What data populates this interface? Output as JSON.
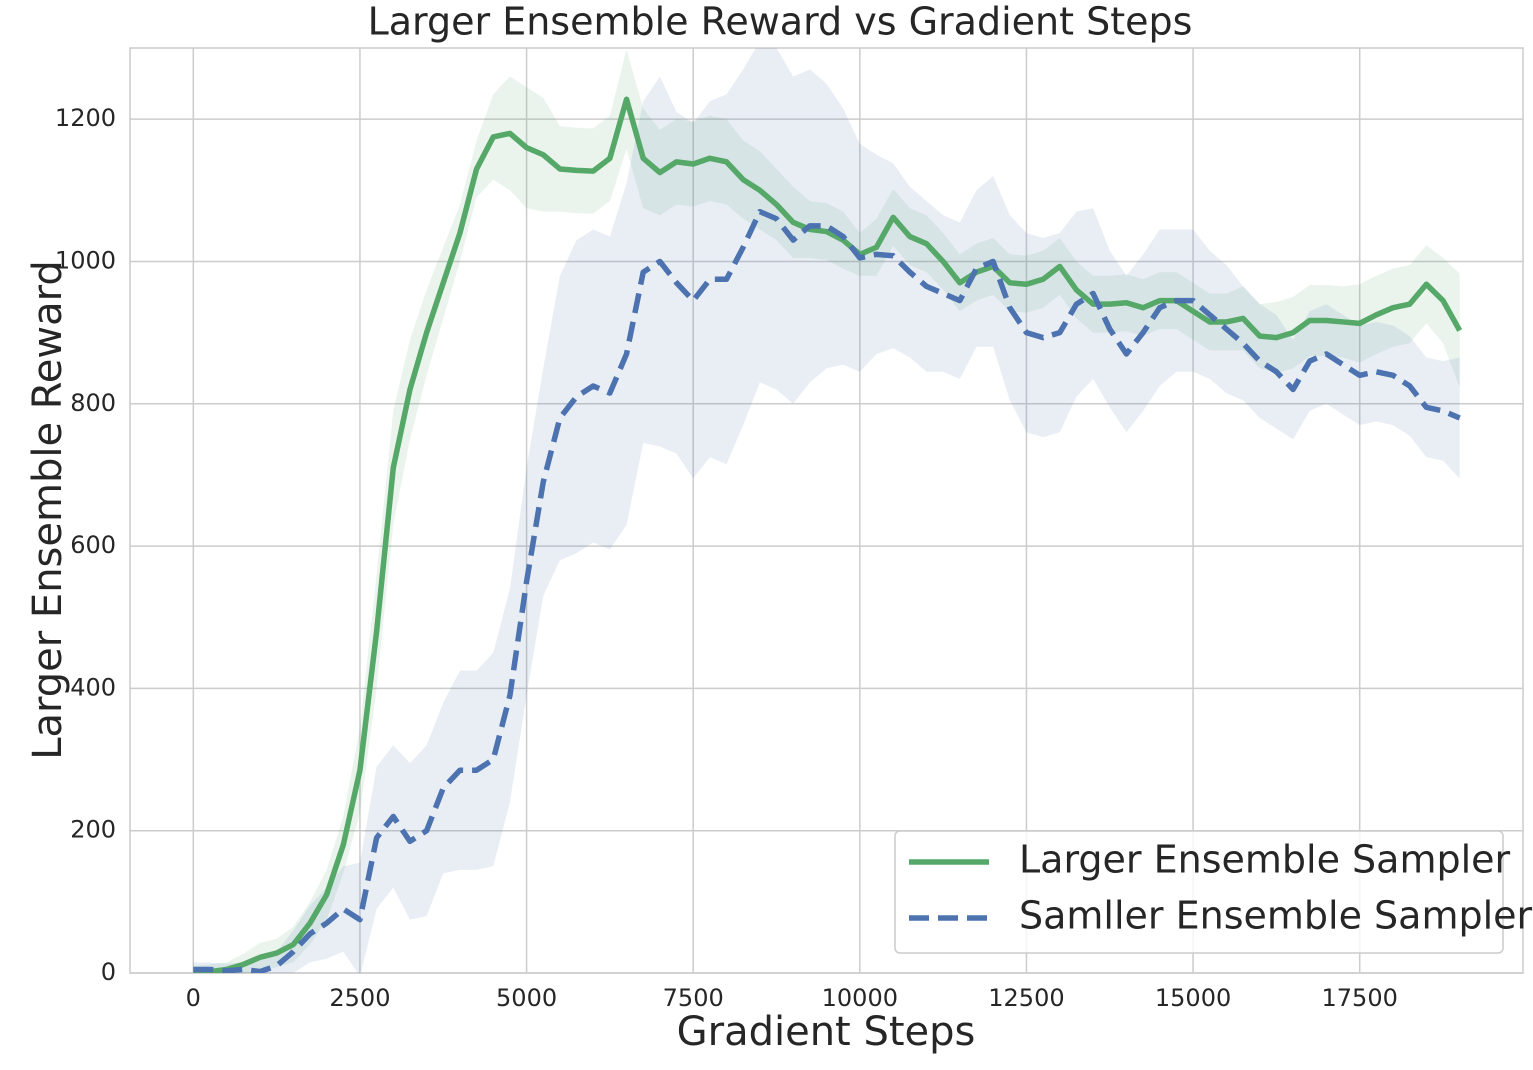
{
  "chart_data": {
    "type": "line",
    "title": "Larger Ensemble Reward vs Gradient Steps",
    "xlabel": "Gradient Steps",
    "ylabel": "Larger Ensemble Reward",
    "x": [
      0,
      250,
      500,
      750,
      1000,
      1250,
      1500,
      1750,
      2000,
      2250,
      2500,
      2750,
      3000,
      3250,
      3500,
      3750,
      4000,
      4250,
      4500,
      4750,
      5000,
      5250,
      5500,
      5750,
      6000,
      6250,
      6500,
      6750,
      7000,
      7250,
      7500,
      7750,
      8000,
      8250,
      8500,
      8750,
      9000,
      9250,
      9500,
      9750,
      10000,
      10250,
      10500,
      10750,
      11000,
      11250,
      11500,
      11750,
      12000,
      12250,
      12500,
      12750,
      13000,
      13250,
      13500,
      13750,
      14000,
      14250,
      14500,
      14750,
      15000,
      15250,
      15500,
      15750,
      16000,
      16250,
      16500,
      16750,
      17000,
      17250,
      17500,
      17750,
      18000,
      18250,
      18500,
      18750,
      19000
    ],
    "series": [
      {
        "name": "Larger Ensemble Sampler",
        "color": "#55a868",
        "linestyle": "solid",
        "values": [
          0,
          2,
          5,
          12,
          22,
          28,
          40,
          70,
          110,
          180,
          285,
          480,
          710,
          820,
          900,
          970,
          1040,
          1130,
          1175,
          1180,
          1160,
          1150,
          1130,
          1128,
          1127,
          1145,
          1228,
          1145,
          1125,
          1140,
          1137,
          1145,
          1140,
          1115,
          1100,
          1080,
          1055,
          1045,
          1042,
          1030,
          1010,
          1020,
          1062,
          1035,
          1025,
          1000,
          970,
          985,
          993,
          970,
          968,
          975,
          993,
          960,
          940,
          940,
          942,
          935,
          945,
          945,
          930,
          915,
          915,
          920,
          895,
          893,
          900,
          917,
          917,
          915,
          913,
          925,
          935,
          940,
          968,
          945,
          903
        ],
        "error": [
          10,
          10,
          10,
          15,
          20,
          20,
          25,
          30,
          35,
          40,
          60,
          80,
          80,
          70,
          60,
          50,
          40,
          40,
          60,
          80,
          85,
          80,
          60,
          60,
          60,
          60,
          70,
          70,
          60,
          60,
          60,
          60,
          60,
          55,
          55,
          50,
          50,
          40,
          40,
          40,
          30,
          40,
          40,
          40,
          40,
          40,
          40,
          40,
          40,
          40,
          40,
          40,
          40,
          40,
          40,
          40,
          40,
          40,
          40,
          40,
          40,
          40,
          40,
          45,
          45,
          50,
          50,
          50,
          50,
          50,
          55,
          55,
          55,
          55,
          55,
          60,
          80
        ]
      },
      {
        "name": "Samller Ensemble Sampler",
        "color": "#4c72b0",
        "linestyle": "dashed",
        "values": [
          5,
          5,
          3,
          5,
          2,
          10,
          30,
          55,
          70,
          90,
          75,
          190,
          220,
          185,
          200,
          260,
          285,
          285,
          300,
          390,
          550,
          690,
          780,
          810,
          825,
          815,
          870,
          985,
          1000,
          970,
          945,
          975,
          975,
          1020,
          1070,
          1060,
          1030,
          1050,
          1050,
          1035,
          1005,
          1010,
          1008,
          985,
          965,
          955,
          945,
          990,
          1000,
          935,
          900,
          893,
          900,
          940,
          955,
          905,
          870,
          900,
          935,
          945,
          945,
          925,
          905,
          885,
          860,
          845,
          820,
          860,
          870,
          855,
          840,
          845,
          840,
          825,
          795,
          790,
          780
        ],
        "error": [
          10,
          10,
          10,
          10,
          15,
          20,
          30,
          40,
          50,
          60,
          80,
          100,
          100,
          110,
          120,
          120,
          140,
          140,
          150,
          150,
          160,
          160,
          200,
          220,
          220,
          220,
          240,
          240,
          260,
          240,
          250,
          250,
          260,
          250,
          240,
          240,
          230,
          220,
          200,
          180,
          160,
          140,
          130,
          120,
          120,
          110,
          110,
          110,
          120,
          130,
          140,
          140,
          140,
          130,
          120,
          110,
          110,
          110,
          110,
          100,
          100,
          90,
          90,
          80,
          80,
          80,
          70,
          70,
          70,
          70,
          70,
          70,
          70,
          70,
          70,
          70,
          85
        ]
      }
    ],
    "xlim": [
      -950,
      19950
    ],
    "ylim": [
      0,
      1300
    ],
    "xticks": [
      0,
      2500,
      5000,
      7500,
      10000,
      12500,
      15000,
      17500
    ],
    "yticks": [
      0,
      200,
      400,
      600,
      800,
      1000,
      1200
    ],
    "grid": true,
    "legend": "lower right"
  }
}
